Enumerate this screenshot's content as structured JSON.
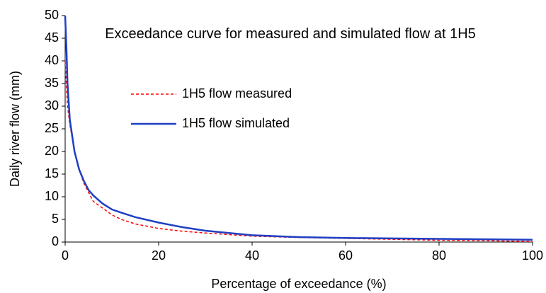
{
  "chart_data": {
    "type": "line",
    "title": "Exceedance curve for measured and simulated flow at 1H5",
    "x_label": "Percentage of exceedance (%)",
    "y_label": "Daily river flow (mm)",
    "x": [
      0,
      0.3,
      0.5,
      1,
      2,
      3,
      4,
      5,
      6,
      8,
      10,
      12,
      15,
      20,
      25,
      30,
      40,
      50,
      60,
      70,
      80,
      90,
      100
    ],
    "series": [
      {
        "name": "1H5 flow measured",
        "color": "#ff0000",
        "style": "dashed",
        "values": [
          40,
          34,
          30,
          26,
          20,
          16,
          13,
          11,
          9,
          7.5,
          6,
          5,
          4,
          3,
          2.4,
          2,
          1.3,
          1,
          0.8,
          0.6,
          0.4,
          0.3,
          0.1
        ]
      },
      {
        "name": "1H5 flow simulated",
        "color": "#1f3fc4",
        "style": "solid",
        "values": [
          50,
          42,
          35,
          27,
          20,
          16,
          13.5,
          11.5,
          10.3,
          8.5,
          7.2,
          6.5,
          5.5,
          4.3,
          3.3,
          2.5,
          1.5,
          1.1,
          0.9,
          0.8,
          0.7,
          0.6,
          0.5
        ]
      }
    ],
    "xlim": [
      0,
      100
    ],
    "xticks": [
      0,
      20,
      40,
      60,
      80,
      100
    ],
    "ylim": [
      0,
      50
    ],
    "yticks": [
      0,
      5,
      10,
      15,
      20,
      25,
      30,
      35,
      40,
      45,
      50
    ],
    "grid": false,
    "legend": "upper-left"
  }
}
